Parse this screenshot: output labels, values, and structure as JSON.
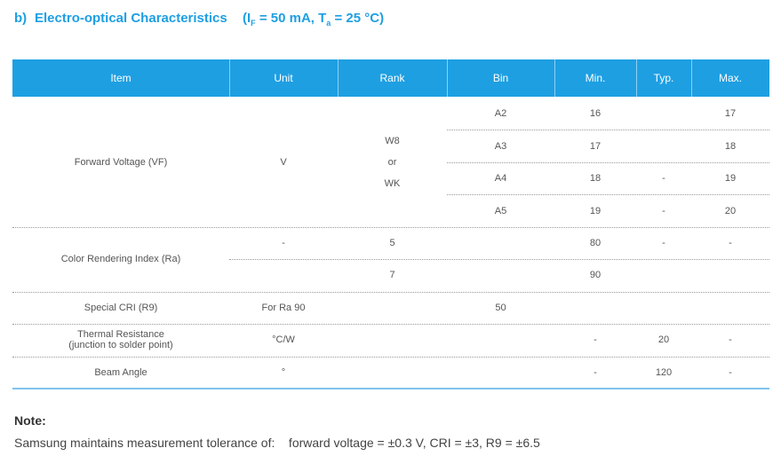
{
  "header": {
    "label": "b)",
    "title": "Electro-optical Characteristics",
    "condition": [
      {
        "text": "(I"
      },
      {
        "text": "F",
        "sub": true
      },
      {
        "text": " = 50 mA, T"
      },
      {
        "text": "a",
        "sub": true
      },
      {
        "text": " = 25 °C)"
      }
    ]
  },
  "table": {
    "columns": [
      "Item",
      "Unit",
      "Rank",
      "Bin",
      "Min.",
      "Typ.",
      "Max."
    ],
    "groups": [
      {
        "item": "Forward Voltage (VF)",
        "unit": "V",
        "rank": [
          "W8",
          "or",
          "WK"
        ],
        "rows": [
          [
            null,
            null,
            null,
            "A2",
            "16",
            null,
            "17"
          ],
          [
            null,
            null,
            null,
            "A3",
            "17",
            null,
            "18"
          ],
          [
            null,
            null,
            null,
            "A4",
            "18",
            "-",
            "19"
          ],
          [
            null,
            null,
            null,
            "A5",
            "19",
            "-",
            "20"
          ]
        ]
      },
      {
        "item": "Color Rendering Index (Ra)",
        "rows": [
          [
            null,
            "-",
            "5",
            null,
            "80",
            "-",
            "-"
          ],
          [
            null,
            null,
            "7",
            null,
            "90",
            null,
            null
          ]
        ]
      },
      {
        "rows": [
          [
            "Special CRI (R9)",
            "For Ra 90",
            null,
            "50",
            null,
            null,
            null
          ]
        ]
      },
      {
        "rows": [
          [
            [
              "Thermal Resistance",
              "(junction to solder point)"
            ],
            "°C/W",
            null,
            null,
            "-",
            "20",
            "-"
          ]
        ]
      },
      {
        "rows": [
          [
            "Beam Angle",
            "°",
            null,
            null,
            "-",
            "120",
            "-"
          ]
        ]
      }
    ]
  },
  "note": {
    "title": "Note:",
    "text": "Samsung maintains measurement tolerance of:    forward voltage = ±0.3 V, CRI = ±3, R9 = ±6.5"
  }
}
